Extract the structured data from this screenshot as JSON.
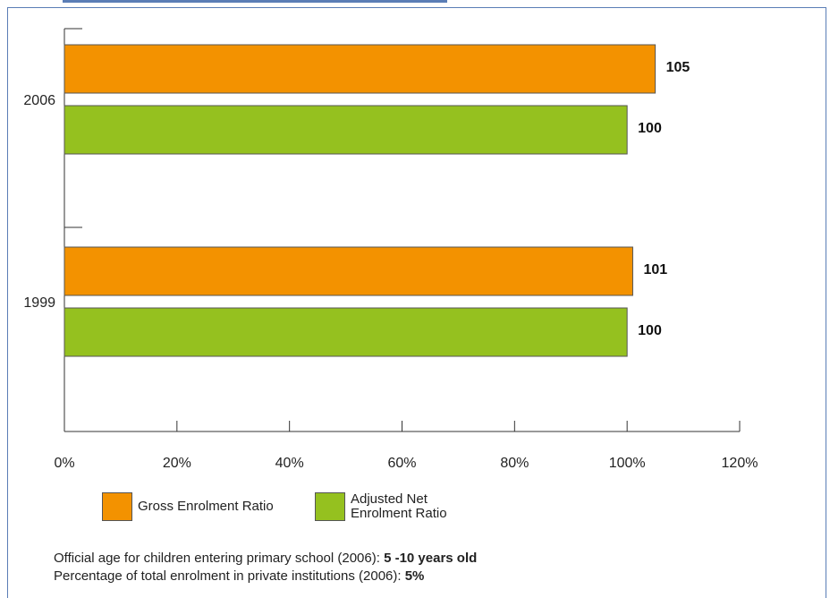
{
  "colors": {
    "gross": "#f39200",
    "net": "#95c11f",
    "frame": "#5a7db6"
  },
  "chart_data": {
    "type": "bar",
    "orientation": "horizontal",
    "categories": [
      "2006",
      "1999"
    ],
    "series": [
      {
        "name": "Gross Enrolment Ratio",
        "values": [
          105,
          101
        ]
      },
      {
        "name": "Adjusted Net Enrolment Ratio",
        "values": [
          100,
          100
        ]
      }
    ],
    "data_labels": [
      [
        "105",
        "101"
      ],
      [
        "100",
        "100"
      ]
    ],
    "xlim": [
      0,
      120
    ],
    "x_ticks": [
      "0%",
      "20%",
      "40%",
      "60%",
      "80%",
      "100%",
      "120%"
    ],
    "grid": false,
    "legend_position": "bottom"
  },
  "legend": {
    "gross_label": "Gross Enrolment Ratio",
    "net_label_line1": "Adjusted Net",
    "net_label_line2": "Enrolment Ratio"
  },
  "notes": {
    "age_label": "Official age for children entering primary school (2006): ",
    "age_value": "5 -10 years old",
    "private_label": "Percentage of total enrolment in private institutions (2006): ",
    "private_value": "5%"
  }
}
